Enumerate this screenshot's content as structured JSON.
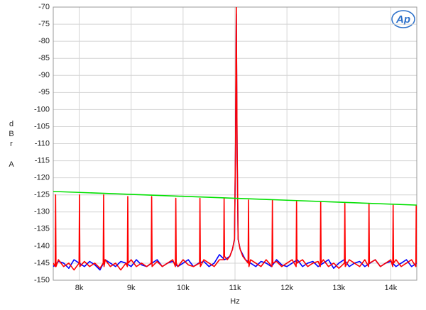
{
  "chart_data": {
    "type": "line",
    "logo": "Ap",
    "xlabel": "Hz",
    "ylabel": "dBr A",
    "xlim": [
      7500,
      14500
    ],
    "ylim": [
      -150,
      -70
    ],
    "xticks": [
      {
        "value": 8000,
        "label": "8k"
      },
      {
        "value": 9000,
        "label": "9k"
      },
      {
        "value": 10000,
        "label": "10k"
      },
      {
        "value": 11000,
        "label": "11k"
      },
      {
        "value": 12000,
        "label": "12k"
      },
      {
        "value": 13000,
        "label": "13k"
      },
      {
        "value": 14000,
        "label": "14k"
      }
    ],
    "yticks": [
      -70,
      -75,
      -80,
      -85,
      -90,
      -95,
      -100,
      -105,
      -110,
      -115,
      -120,
      -125,
      -130,
      -135,
      -140,
      -145,
      -150
    ],
    "grid": true,
    "series": [
      {
        "color": "#00e000",
        "x": [
          7500,
          14500
        ],
        "values": [
          -124,
          -128
        ]
      },
      {
        "color": "#0000ff",
        "x": [
          7500,
          7600,
          7700,
          7800,
          7900,
          8000,
          8100,
          8200,
          8300,
          8400,
          8500,
          8600,
          8700,
          8800,
          8900,
          9000,
          9100,
          9200,
          9300,
          9400,
          9500,
          9600,
          9700,
          9800,
          9900,
          10000,
          10100,
          10200,
          10300,
          10400,
          10500,
          10600,
          10700,
          10800,
          10900,
          10950,
          10990,
          11010,
          11025,
          11040,
          11060,
          11100,
          11200,
          11300,
          11400,
          11500,
          11600,
          11700,
          11800,
          11900,
          12000,
          12100,
          12200,
          12300,
          12400,
          12500,
          12600,
          12700,
          12800,
          12900,
          13000,
          13100,
          13200,
          13300,
          13400,
          13500,
          13600,
          13700,
          13800,
          13900,
          14000,
          14100,
          14200,
          14300,
          14400,
          14500
        ],
        "values": [
          -146,
          -144.5,
          -145,
          -146.5,
          -144,
          -145,
          -146,
          -144.5,
          -145.5,
          -147,
          -144,
          -145,
          -146,
          -144.5,
          -145,
          -146,
          -144,
          -145.5,
          -146,
          -145,
          -144,
          -146,
          -145,
          -144.5,
          -146,
          -145,
          -144,
          -146,
          -145,
          -144.5,
          -146,
          -145,
          -142.5,
          -144,
          -143,
          -141,
          -138,
          -112,
          -72,
          -112,
          -138,
          -141,
          -144,
          -145,
          -146,
          -144.5,
          -145,
          -146,
          -144,
          -145.5,
          -146,
          -145,
          -144,
          -146,
          -145,
          -144.5,
          -146,
          -145,
          -144,
          -146.5,
          -145,
          -144,
          -146,
          -145,
          -144.5,
          -146,
          -145,
          -144,
          -146,
          -145,
          -144.5,
          -146,
          -145,
          -144,
          -146,
          -145
        ]
      },
      {
        "color": "#ff0000",
        "x": [
          7500,
          7537,
          7545,
          7553,
          7600,
          7700,
          7800,
          7900,
          7997,
          8005,
          8013,
          8100,
          8200,
          8300,
          8400,
          8462,
          8470,
          8478,
          8500,
          8600,
          8700,
          8800,
          8900,
          8927,
          8935,
          8943,
          9000,
          9100,
          9200,
          9300,
          9387,
          9395,
          9403,
          9500,
          9600,
          9700,
          9800,
          9852,
          9860,
          9868,
          9900,
          10000,
          10100,
          10200,
          10317,
          10325,
          10333,
          10400,
          10500,
          10600,
          10700,
          10782,
          10790,
          10798,
          10850,
          10900,
          10950,
          10990,
          11010,
          11025,
          11040,
          11060,
          11100,
          11150,
          11200,
          11252,
          11260,
          11268,
          11300,
          11400,
          11500,
          11600,
          11712,
          11720,
          11728,
          11800,
          11900,
          12000,
          12100,
          12177,
          12185,
          12193,
          12300,
          12400,
          12500,
          12600,
          12642,
          12650,
          12658,
          12700,
          12800,
          12900,
          13000,
          13107,
          13115,
          13123,
          13200,
          13300,
          13400,
          13500,
          13572,
          13580,
          13588,
          13700,
          13800,
          13900,
          14000,
          14037,
          14045,
          14053,
          14100,
          14200,
          14300,
          14400,
          14482,
          14490,
          14498
        ],
        "values": [
          -145,
          -146,
          -125,
          -146,
          -144,
          -146,
          -145,
          -147,
          -145,
          -125,
          -146,
          -144.5,
          -146,
          -145,
          -146.5,
          -145,
          -125,
          -146,
          -144,
          -146,
          -145,
          -147,
          -145,
          -146,
          -125.5,
          -145,
          -144,
          -146,
          -145,
          -146,
          -145,
          -125.5,
          -146,
          -144.5,
          -146,
          -145,
          -144,
          -146,
          -126,
          -145,
          -146,
          -144,
          -145.5,
          -146,
          -145,
          -126,
          -146,
          -144,
          -145,
          -146,
          -144,
          -144,
          -126,
          -143,
          -144,
          -143,
          -141,
          -138,
          -110,
          -70,
          -110,
          -138,
          -141,
          -143,
          -144,
          -145,
          -126.5,
          -146,
          -144,
          -145,
          -146,
          -144,
          -146,
          -126.5,
          -145,
          -144.5,
          -146,
          -145,
          -144,
          -146,
          -127,
          -145,
          -144,
          -146,
          -145,
          -144.5,
          -146,
          -127,
          -145,
          -144,
          -146,
          -145,
          -146.5,
          -145,
          -127.5,
          -146,
          -144,
          -145,
          -146,
          -144,
          -146,
          -127.5,
          -145,
          -144,
          -146,
          -145,
          -144,
          -146,
          -128,
          -145,
          -144,
          -146,
          -145,
          -144,
          -146,
          -128,
          -145
        ]
      }
    ]
  }
}
